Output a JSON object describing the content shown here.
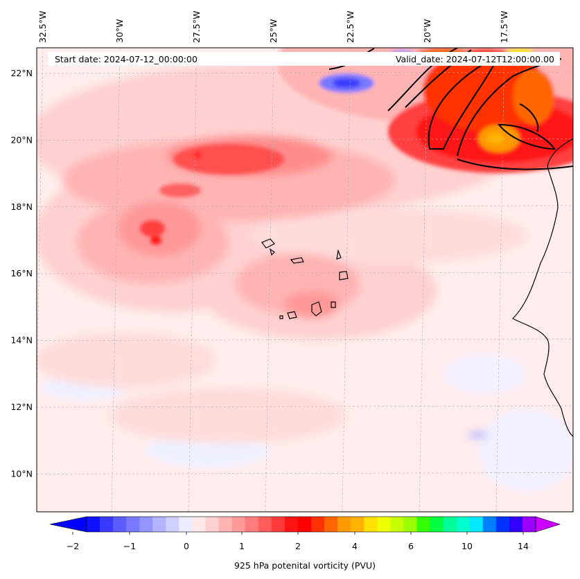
{
  "header": {
    "start_date": "Start date: 2024-07-12_00:00:00",
    "valid_date": "Valid_date: 2024-07-12T12:00:00.00"
  },
  "axes": {
    "lon_labels": [
      "32.5°W",
      "30°W",
      "27.5°W",
      "25°W",
      "22.5°W",
      "20°W",
      "17.5°W"
    ],
    "lat_labels": [
      "22°N",
      "20°N",
      "18°N",
      "16°N",
      "14°N",
      "12°N",
      "10°N"
    ],
    "lon_values": [
      -32.5,
      -30,
      -27.5,
      -25,
      -22.5,
      -20,
      -17.5
    ],
    "lat_values": [
      22,
      20,
      18,
      16,
      14,
      12,
      10
    ],
    "extent": {
      "lon_min": -32.5,
      "lon_max": -15.3,
      "lat_min": 9,
      "lat_max": 22.8
    },
    "grid": true
  },
  "colorbar": {
    "label": "925 hPa potenital vorticity (PVU)",
    "tick_labels": [
      "−2",
      "−1",
      "0",
      "1",
      "2",
      "4",
      "6",
      "10",
      "14"
    ],
    "tick_values": [
      -2,
      -1,
      0,
      1,
      2,
      4,
      6,
      10,
      14
    ],
    "colors": [
      "#1010ff",
      "#3a3aff",
      "#5c5cff",
      "#7878ff",
      "#9595ff",
      "#b3b3ff",
      "#d0d0ff",
      "#ececff",
      "#ffe8e8",
      "#ffd0d0",
      "#ffb4b4",
      "#ff9898",
      "#ff7c7c",
      "#ff5c5c",
      "#ff3a3a",
      "#ff1414",
      "#ff0000",
      "#ff3300",
      "#ff6600",
      "#ff9900",
      "#ffb300",
      "#ffe000",
      "#eeff00",
      "#c8ff00",
      "#99ff00",
      "#33ff00",
      "#00ff40",
      "#00ff99",
      "#00ffcc",
      "#00e8ff",
      "#0080ff",
      "#0033ff",
      "#3300ff",
      "#9900ff"
    ],
    "under_color": "#0000ff",
    "over_color": "#cc00ff"
  },
  "legend_note": ""
}
